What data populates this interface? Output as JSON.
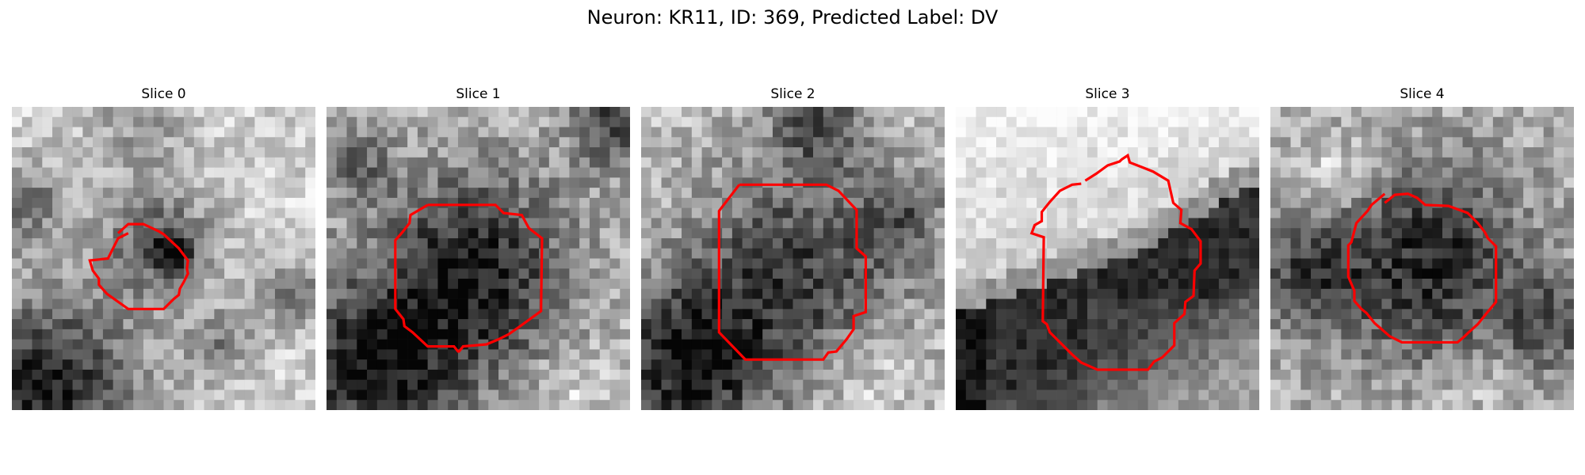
{
  "figure": {
    "suptitle": "Neuron: KR11, ID: 369, Predicted Label: DV",
    "contour_color": "#ff0000",
    "colormap": "gray"
  },
  "panels": [
    {
      "title": "Slice 0"
    },
    {
      "title": "Slice 1"
    },
    {
      "title": "Slice 2"
    },
    {
      "title": "Slice 3"
    },
    {
      "title": "Slice 4"
    }
  ]
}
